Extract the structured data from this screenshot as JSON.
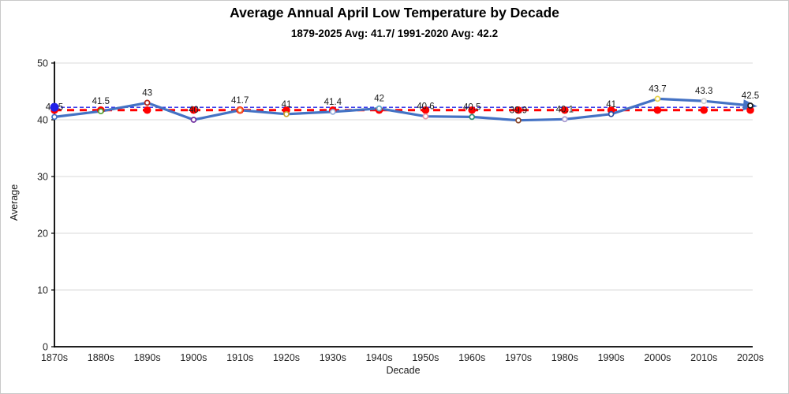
{
  "figure": {
    "title": "Average Annual April Low Temperature by Decade",
    "subtitle": "1879-2025 Avg: 41.7/ 1991-2020 Avg: 42.2"
  },
  "colors": {
    "background": "#FFFFFF",
    "border": "#C9C9C9",
    "grid": "#D9D9D9",
    "axis": "#000000",
    "text": "#1A1A1A",
    "tick_text": "#262626",
    "series_blue": "#4472C4",
    "avg_red": "#FF0000",
    "avg_blue": "#2020E8"
  },
  "chart_data": {
    "type": "line",
    "title": "Average Annual April Low Temperature by Decade",
    "subtitle": "1879-2025 Avg: 41.7/ 1991-2020 Avg: 42.2",
    "xlabel": "Decade",
    "ylabel": "Average",
    "ylim": [
      0,
      50
    ],
    "yticks": [
      0,
      10,
      20,
      30,
      40,
      50
    ],
    "grid": true,
    "legend_position": "none",
    "categories": [
      "1870s",
      "1880s",
      "1890s",
      "1900s",
      "1910s",
      "1920s",
      "1930s",
      "1940s",
      "1950s",
      "1960s",
      "1970s",
      "1980s",
      "1990s",
      "2000s",
      "2010s",
      "2020s"
    ],
    "series": [
      {
        "name": "Average annual April low temperature",
        "type": "line",
        "color": "#4472C4",
        "line_width": 3.2,
        "end_arrow": true,
        "values": [
          40.5,
          41.5,
          43,
          40,
          41.7,
          41,
          41.4,
          42,
          40.6,
          40.5,
          39.9,
          40.1,
          41,
          43.7,
          43.3,
          42.5
        ],
        "data_labels": [
          "40.5",
          "41.5",
          "43",
          "40",
          "41.7",
          "41",
          "41.4",
          "42",
          "40.6",
          "40.5",
          "39.9",
          "40.1",
          "41",
          "43.7",
          "43.3",
          "42.5"
        ],
        "marker_colors": [
          "#4472C4",
          "#4CA32F",
          "#B02418",
          "#7030A0",
          "#ED7D31",
          "#C9A227",
          "#8FAADC",
          "#63A6C6",
          "#E891A4",
          "#2E8B74",
          "#8B4A2F",
          "#A89BD0",
          "#2F4FA0",
          "#E8D44D",
          "#CFCFCF",
          "#1A1A1A"
        ]
      },
      {
        "name": "1879-2025 Avg",
        "type": "constant-line",
        "value": 41.7,
        "value_label": "41.7",
        "color": "#FF0000",
        "line_style": "dashed",
        "line_width": 3,
        "markers": "red-dot-every-decade"
      },
      {
        "name": "1991-2020 Avg",
        "type": "constant-line",
        "value": 42.2,
        "value_label": "42.2",
        "color": "#2020E8",
        "line_style": "dashed",
        "line_width": 1.4,
        "markers": "start-dot"
      }
    ]
  }
}
